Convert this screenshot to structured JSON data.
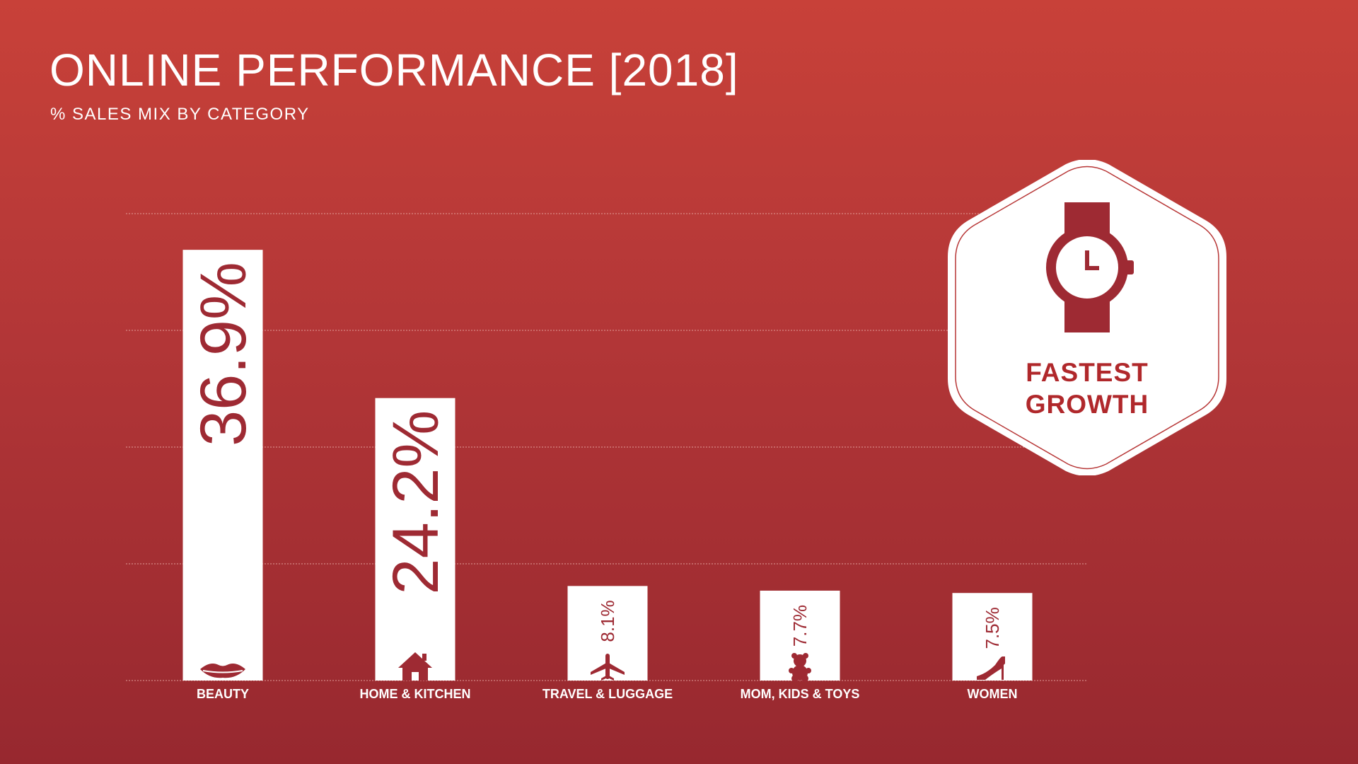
{
  "title": "ONLINE PERFORMANCE [2018]",
  "subtitle": "% SALES MIX BY CATEGORY",
  "colors": {
    "bar": "#ffffff",
    "accent": "#9e2a33",
    "gridline": "#e8a9a4"
  },
  "badge": {
    "line1": "FASTEST",
    "line2": "GROWTH",
    "icon": "watch-icon"
  },
  "chart_data": {
    "type": "bar",
    "title": "ONLINE PERFORMANCE [2018]",
    "subtitle": "% SALES MIX BY CATEGORY",
    "categories": [
      "BEAUTY",
      "HOME & KITCHEN",
      "TRAVEL & LUGGAGE",
      "MOM, KIDS & TOYS",
      "WOMEN"
    ],
    "values": [
      36.9,
      24.2,
      8.1,
      7.7,
      7.5
    ],
    "value_labels": [
      "36.9%",
      "24.2%",
      "8.1%",
      "7.7%",
      "7.5%"
    ],
    "category_icons": [
      "lips-icon",
      "house-icon",
      "airplane-icon",
      "teddy-bear-icon",
      "high-heel-icon"
    ],
    "ylim": [
      0,
      40
    ],
    "grid": true,
    "xlabel": "",
    "ylabel": ""
  }
}
